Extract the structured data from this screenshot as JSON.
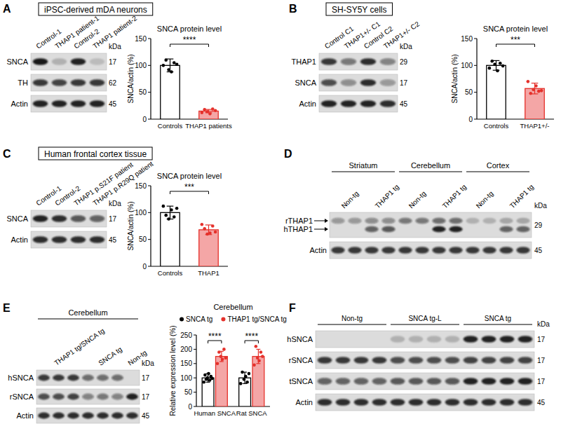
{
  "figure": {
    "panels": [
      {
        "label": "A",
        "title": "iPSC-derived mDA neurons",
        "blot": {
          "lane_labels": [
            {
              "text": "Control-1",
              "span": 1
            },
            {
              "text": "THAP1 patient-1",
              "span": 1
            },
            {
              "text": "Control-2",
              "span": 1
            },
            {
              "text": "THAP1 patient-2",
              "span": 1
            }
          ],
          "kda_label": "kDa",
          "rows": [
            {
              "kda": 17,
              "bands": [
                {
                  "name": "SNCA",
                  "intensity": [
                    0.95,
                    0.2,
                    0.9,
                    0.15
                  ]
                }
              ]
            },
            {
              "kda": 62,
              "bands": [
                {
                  "name": "TH",
                  "intensity": [
                    0.8,
                    0.75,
                    0.8,
                    0.8
                  ]
                }
              ]
            },
            {
              "kda": 45,
              "bands": [
                {
                  "name": "Actin",
                  "intensity": [
                    0.9,
                    0.9,
                    0.9,
                    0.9
                  ]
                }
              ]
            }
          ]
        }
      },
      {
        "label": "B",
        "title": "SH-SY5Y cells",
        "blot": {
          "lane_labels": [
            {
              "text": "Control C1",
              "span": 1
            },
            {
              "text": "THAP1+/- C1",
              "span": 1
            },
            {
              "text": "Control C2",
              "span": 1
            },
            {
              "text": "THAP1+/- C2",
              "span": 1
            }
          ],
          "kda_label": "kDa",
          "rows": [
            {
              "kda": 29,
              "bands": [
                {
                  "name": "THAP1",
                  "intensity": [
                    0.8,
                    0.5,
                    0.85,
                    0.45
                  ]
                }
              ]
            },
            {
              "kda": 17,
              "bands": [
                {
                  "name": "SNCA",
                  "intensity": [
                    0.7,
                    0.4,
                    0.85,
                    0.35
                  ]
                }
              ]
            },
            {
              "kda": 45,
              "bands": [
                {
                  "name": "Actin",
                  "intensity": [
                    0.9,
                    0.9,
                    0.9,
                    0.85
                  ]
                }
              ]
            }
          ]
        }
      },
      {
        "label": "C",
        "title": "Human frontal cortex tissue",
        "blot": {
          "lane_labels": [
            {
              "text": "Control-1",
              "span": 1
            },
            {
              "text": "Control-2",
              "span": 1
            },
            {
              "text": "THAP1 p.S21F patient",
              "span": 1
            },
            {
              "text": "THAP1 p.R29Q patient",
              "span": 1
            }
          ],
          "kda_label": "kDa",
          "rows": [
            {
              "kda": 17,
              "bands": [
                {
                  "name": "SNCA",
                  "intensity": [
                    0.9,
                    0.85,
                    0.65,
                    0.6
                  ]
                }
              ]
            },
            {
              "kda": 45,
              "bands": [
                {
                  "name": "Actin",
                  "intensity": [
                    0.85,
                    0.85,
                    0.85,
                    0.85
                  ]
                }
              ]
            }
          ]
        }
      },
      {
        "label": "D",
        "blot": {
          "groups": [
            {
              "text": "Striatum",
              "span": 4
            },
            {
              "text": "Cerebellum",
              "span": 4
            },
            {
              "text": "Cortex",
              "span": 4
            }
          ],
          "lane_labels": [
            {
              "text": "Non-tg",
              "span": 2
            },
            {
              "text": "THAP1 tg",
              "span": 2
            },
            {
              "text": "Non-tg",
              "span": 2
            },
            {
              "text": "THAP1 tg",
              "span": 2
            },
            {
              "text": "Non-tg",
              "span": 2
            },
            {
              "text": "THAP1 tg",
              "span": 2
            }
          ],
          "kda_label": "kDa",
          "rows": [
            {
              "kda": 29,
              "bands": [
                {
                  "name": "rTHAP1",
                  "intensity": [
                    0.35,
                    0.35,
                    0.4,
                    0.4,
                    0.5,
                    0.5,
                    0.55,
                    0.55,
                    0.2,
                    0.2,
                    0.25,
                    0.25
                  ]
                },
                {
                  "name": "hTHAP1",
                  "intensity": [
                    0,
                    0,
                    0.6,
                    0.65,
                    0,
                    0,
                    0.9,
                    0.9,
                    0,
                    0,
                    0.6,
                    0.6
                  ]
                }
              ]
            },
            {
              "kda": 45,
              "bands": [
                {
                  "name": "Actin",
                  "intensity": [
                    0.8,
                    0.8,
                    0.8,
                    0.8,
                    0.8,
                    0.8,
                    0.8,
                    0.8,
                    0.8,
                    0.8,
                    0.8,
                    0.8
                  ]
                }
              ]
            }
          ]
        }
      },
      {
        "label": "E",
        "blot": {
          "header": "Cerebellum",
          "lane_labels": [
            {
              "text": "THAP1 tg/SNCA tg",
              "span": 3
            },
            {
              "text": "SNCA tg",
              "span": 3
            },
            {
              "text": "Non-tg",
              "span": 1
            }
          ],
          "kda_label": "kDa",
          "rows": [
            {
              "kda": 17,
              "bands": [
                {
                  "name": "hSNCA",
                  "intensity": [
                    0.8,
                    0.8,
                    0.8,
                    0.55,
                    0.55,
                    0.55,
                    0
                  ]
                }
              ]
            },
            {
              "kda": 17,
              "bands": [
                {
                  "name": "rSNCA",
                  "intensity": [
                    0.7,
                    0.7,
                    0.75,
                    0.45,
                    0.5,
                    0.45,
                    0.9
                  ]
                }
              ]
            },
            {
              "kda": 45,
              "bands": [
                {
                  "name": "Actin",
                  "intensity": [
                    0.85,
                    0.85,
                    0.85,
                    0.85,
                    0.85,
                    0.85,
                    0.85
                  ]
                }
              ]
            }
          ]
        }
      },
      {
        "label": "F",
        "blot": {
          "lane_labels": [
            {
              "text": "Non-tg",
              "span": 4
            },
            {
              "text": "SNCA tg-L",
              "span": 4
            },
            {
              "text": "SNCA tg",
              "span": 4
            }
          ],
          "kda_label": "kDa",
          "rows": [
            {
              "kda": 17,
              "bands": [
                {
                  "name": "hSNCA",
                  "intensity": [
                    0,
                    0,
                    0,
                    0,
                    0.2,
                    0.2,
                    0.2,
                    0.2,
                    0.9,
                    0.9,
                    0.9,
                    0.9
                  ]
                }
              ]
            },
            {
              "kda": 17,
              "bands": [
                {
                  "name": "rSNCA",
                  "intensity": [
                    0.8,
                    0.8,
                    0.8,
                    0.8,
                    0.7,
                    0.7,
                    0.7,
                    0.7,
                    0.75,
                    0.75,
                    0.75,
                    0.75
                  ]
                }
              ]
            },
            {
              "kda": 17,
              "bands": [
                {
                  "name": "tSNCA",
                  "intensity": [
                    0.6,
                    0.6,
                    0.6,
                    0.6,
                    0.65,
                    0.65,
                    0.65,
                    0.65,
                    0.9,
                    0.9,
                    0.9,
                    0.9
                  ]
                }
              ]
            },
            {
              "kda": 45,
              "bands": [
                {
                  "name": "Actin",
                  "intensity": [
                    0.85,
                    0.85,
                    0.85,
                    0.85,
                    0.85,
                    0.85,
                    0.85,
                    0.85,
                    0.85,
                    0.85,
                    0.85,
                    0.85
                  ]
                }
              ]
            }
          ]
        }
      }
    ]
  },
  "chart_data": [
    {
      "type": "bar",
      "title": "SNCA protein level",
      "y_label": "SNCA/actin (%)",
      "categories": [
        "Controls",
        "THAP1 patients"
      ],
      "values": [
        100,
        15
      ],
      "errors": [
        12,
        3
      ],
      "points": [
        [
          100,
          110,
          92,
          88,
          105,
          102
        ],
        [
          12,
          18,
          14,
          10,
          19,
          16
        ]
      ],
      "colors": [
        "#ffffff",
        "#f4a6a6"
      ],
      "ylim": [
        0,
        150
      ],
      "yticks": [
        0,
        50,
        100,
        150
      ],
      "annotations": [
        "****"
      ]
    },
    {
      "type": "bar",
      "title": "SNCA protein level",
      "y_label": "SNCA/actin (%)",
      "categories": [
        "Controls",
        "THAP1+/-"
      ],
      "values": [
        100,
        57
      ],
      "errors": [
        9,
        10
      ],
      "points": [
        [
          95,
          108,
          102,
          90,
          104,
          99
        ],
        [
          70,
          48,
          55,
          62,
          52,
          53
        ]
      ],
      "colors": [
        "#ffffff",
        "#f4a6a6"
      ],
      "ylim": [
        0,
        150
      ],
      "yticks": [
        0,
        50,
        100,
        150
      ],
      "annotations": [
        "***"
      ]
    },
    {
      "type": "bar",
      "title": "SNCA protein level",
      "y_label": "SNCA/actin (%)",
      "categories": [
        "Controls",
        "THAP1"
      ],
      "values": [
        100,
        68
      ],
      "errors": [
        12,
        9
      ],
      "points": [
        [
          112,
          95,
          88,
          105,
          92,
          108
        ],
        [
          78,
          70,
          60,
          62,
          75,
          64
        ]
      ],
      "colors": [
        "#ffffff",
        "#f4a6a6"
      ],
      "ylim": [
        0,
        150
      ],
      "yticks": [
        0,
        50,
        100,
        150
      ],
      "annotations": [
        "***"
      ]
    },
    {
      "type": "bar",
      "title": "Cerebellum",
      "y_label": "Relative expression level (%)",
      "categories": [
        "Human SNCA",
        "Rat SNCA"
      ],
      "series": [
        {
          "name": "SNCA tg",
          "color": "#ffffff",
          "values": [
            100,
            100
          ],
          "errors": [
            15,
            20
          ],
          "points": [
            [
              85,
              110,
              95,
              100,
              115,
              92,
              105,
              98
            ],
            [
              80,
              120,
              95,
              105,
              85,
              115
            ]
          ]
        },
        {
          "name": "THAP1 tg/SNCA tg",
          "color": "#f4a6a6",
          "values": [
            175,
            175
          ],
          "errors": [
            18,
            25
          ],
          "points": [
            [
              150,
              190,
              175,
              165,
              200,
              170
            ],
            [
              145,
              210,
              170,
              160,
              190,
              175
            ]
          ]
        }
      ],
      "ylim": [
        0,
        250
      ],
      "yticks": [
        0,
        50,
        100,
        150,
        200,
        250
      ],
      "legend": "top",
      "annotations": [
        "****",
        "****"
      ]
    }
  ]
}
